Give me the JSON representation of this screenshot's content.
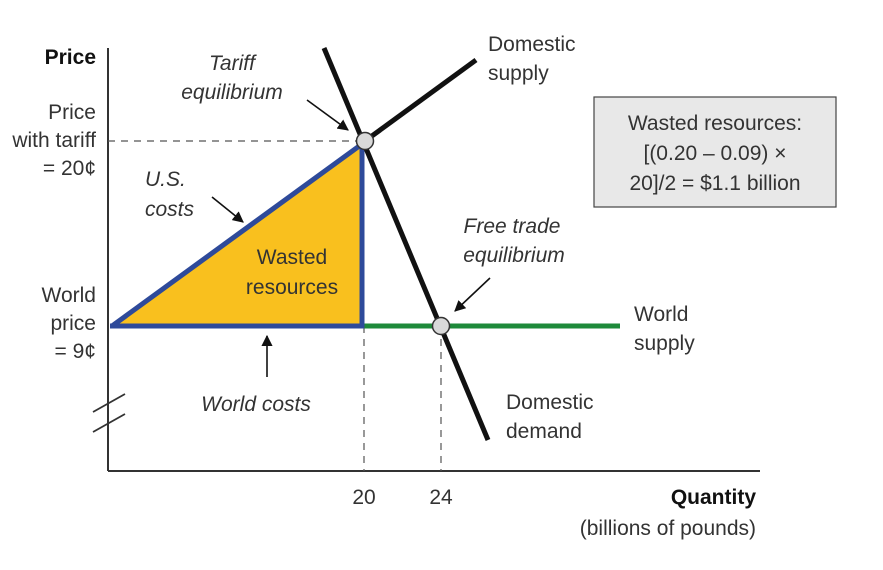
{
  "axes": {
    "y_label": "Price",
    "x_label": "Quantity",
    "x_unit": "(billions of pounds)",
    "x_ticks": [
      "20",
      "24"
    ],
    "y_ticks": [
      {
        "lines": [
          "Price",
          "with tariff",
          "= 20¢"
        ]
      },
      {
        "lines": [
          "World",
          "price",
          "= 9¢"
        ]
      }
    ]
  },
  "curves": {
    "domestic_supply": [
      "Domestic",
      "supply"
    ],
    "domestic_demand": [
      "Domestic",
      "demand"
    ],
    "world_supply": [
      "World",
      "supply"
    ]
  },
  "annotations": {
    "tariff_equilibrium": [
      "Tariff",
      "equilibrium"
    ],
    "free_trade_equilibrium": [
      "Free trade",
      "equilibrium"
    ],
    "us_costs": [
      "U.S.",
      "costs"
    ],
    "wasted_resources": [
      "Wasted",
      "resources"
    ],
    "world_costs": "World costs"
  },
  "callout_box": {
    "lines": [
      "Wasted resources:",
      "[(0.20 – 0.09)  ×",
      "20]/2 = $1.1 billion"
    ]
  },
  "colors": {
    "triangle_fill": "#F9C01E",
    "triangle_outline": "#2E4A9A",
    "world_supply_line": "#1E8A3A",
    "curve_line": "#111111",
    "box_fill": "#E8E8E8"
  }
}
